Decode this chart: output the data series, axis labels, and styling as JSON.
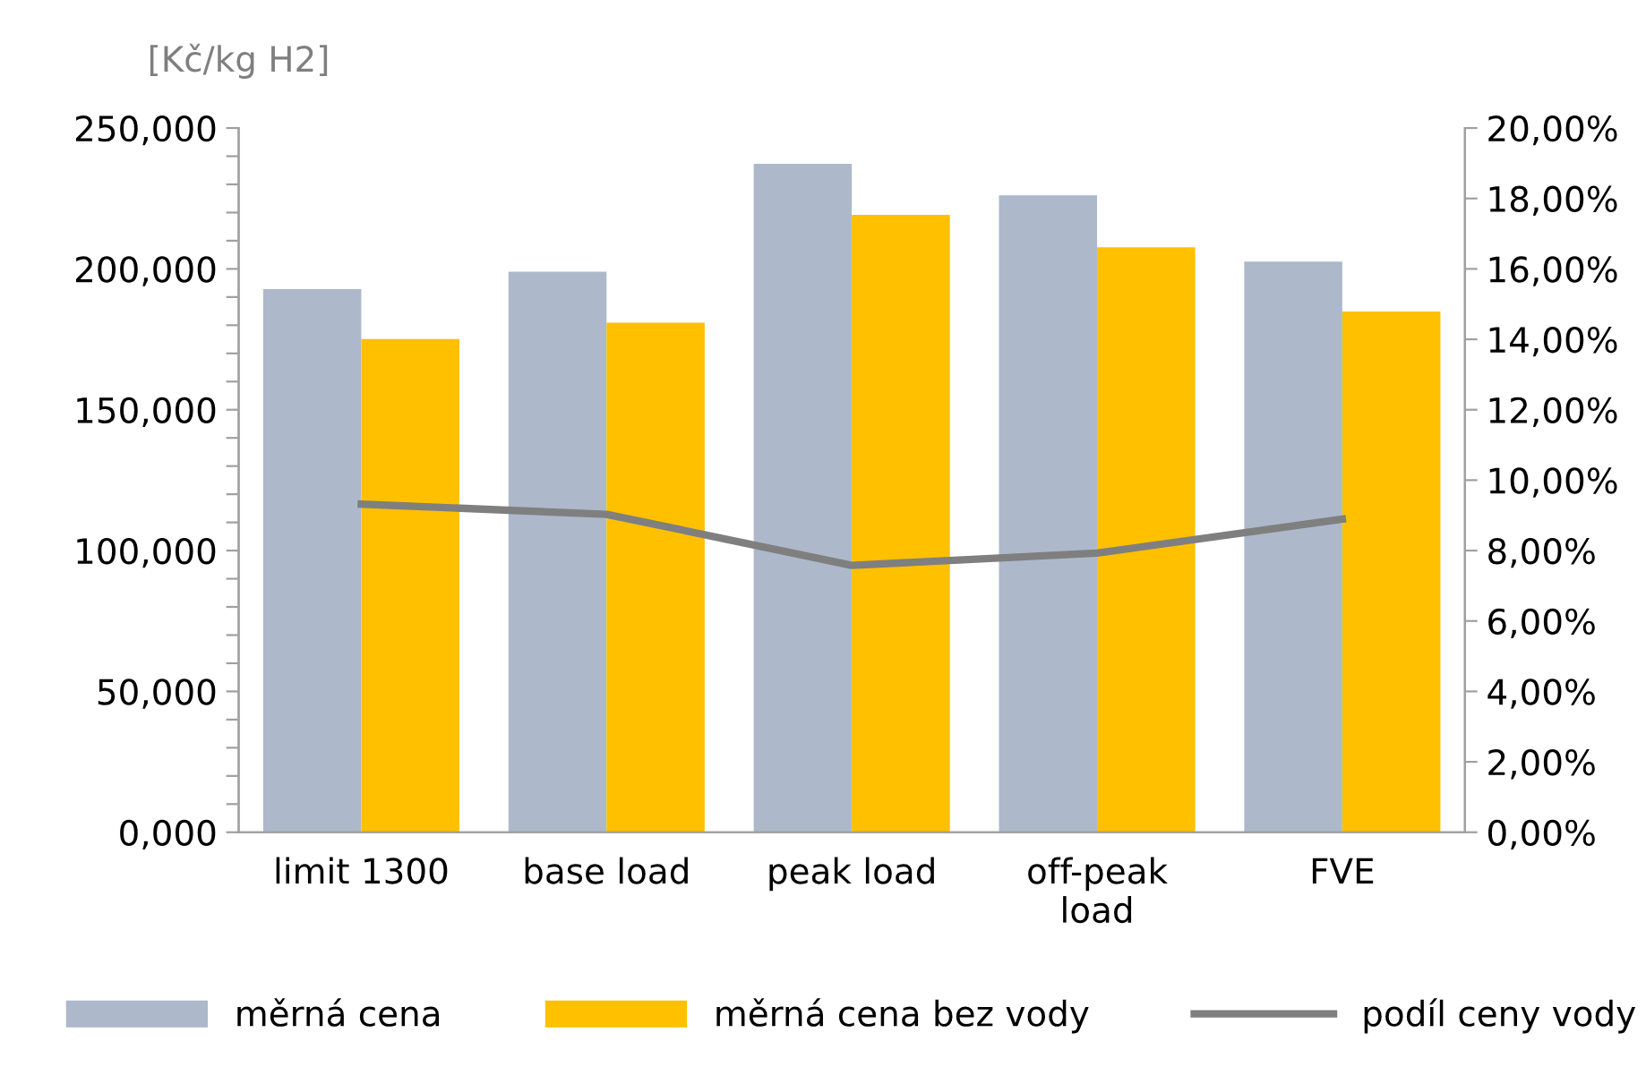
{
  "chart_data": {
    "type": "bar",
    "ylabel": "[Kč/kg H2]",
    "categories": [
      "limit 1300",
      "base load",
      "peak load",
      "off-peak\nload",
      "FVE"
    ],
    "series": [
      {
        "name": "měrná cena",
        "color": "#adb9ca",
        "values": [
          192.8,
          199.0,
          237.3,
          226.1,
          202.6
        ]
      },
      {
        "name": "měrná cena bez vody",
        "color": "#ffc000",
        "values": [
          175.1,
          180.9,
          219.2,
          207.7,
          184.9
        ]
      },
      {
        "name": "podíl ceny vody",
        "type": "line",
        "axis": "y2",
        "color": "#7f7f7f",
        "values": [
          9.32,
          9.03,
          7.58,
          7.93,
          8.89
        ]
      }
    ],
    "ylim": [
      0,
      250
    ],
    "yticks": [
      {
        "value": 0,
        "label": "0,000"
      },
      {
        "value": 10,
        "label": null
      },
      {
        "value": 20,
        "label": null
      },
      {
        "value": 30,
        "label": null
      },
      {
        "value": 40,
        "label": null
      },
      {
        "value": 50,
        "label": "50,000"
      },
      {
        "value": 60,
        "label": null
      },
      {
        "value": 70,
        "label": null
      },
      {
        "value": 80,
        "label": null
      },
      {
        "value": 90,
        "label": null
      },
      {
        "value": 100,
        "label": "100,000"
      },
      {
        "value": 110,
        "label": null
      },
      {
        "value": 120,
        "label": null
      },
      {
        "value": 130,
        "label": null
      },
      {
        "value": 140,
        "label": null
      },
      {
        "value": 150,
        "label": "150,000"
      },
      {
        "value": 160,
        "label": null
      },
      {
        "value": 170,
        "label": null
      },
      {
        "value": 180,
        "label": null
      },
      {
        "value": 190,
        "label": null
      },
      {
        "value": 200,
        "label": "200,000"
      },
      {
        "value": 210,
        "label": null
      },
      {
        "value": 220,
        "label": null
      },
      {
        "value": 230,
        "label": null
      },
      {
        "value": 240,
        "label": null
      },
      {
        "value": 250,
        "label": "250,000"
      }
    ],
    "y2lim": [
      0,
      20
    ],
    "y2ticks": [
      {
        "value": 0,
        "label": "0,00%"
      },
      {
        "value": 2,
        "label": "2,00%"
      },
      {
        "value": 4,
        "label": "4,00%"
      },
      {
        "value": 6,
        "label": "6,00%"
      },
      {
        "value": 8,
        "label": "8,00%"
      },
      {
        "value": 10,
        "label": "10,00%"
      },
      {
        "value": 12,
        "label": "12,00%"
      },
      {
        "value": 14,
        "label": "14,00%"
      },
      {
        "value": 16,
        "label": "16,00%"
      },
      {
        "value": 18,
        "label": "18,00%"
      },
      {
        "value": 20,
        "label": "20,00%"
      }
    ],
    "grid": false,
    "legend": "bottom",
    "marker": "none",
    "line_style": "solid"
  }
}
